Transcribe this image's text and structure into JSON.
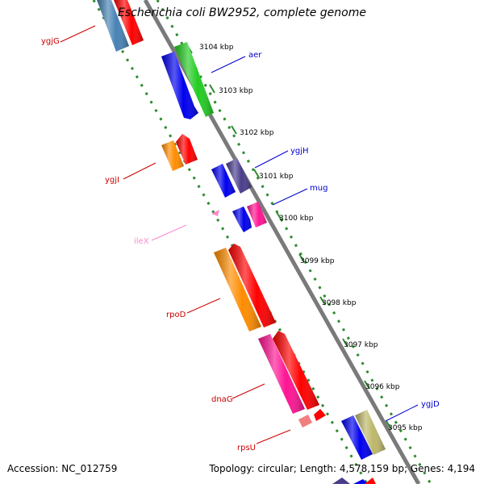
{
  "title": "Escherichia coli BW2952, complete genome",
  "footer": {
    "accession": "Accession: NC_012759",
    "summary": "Topology: circular; Length: 4,578,159 bp; Genes: 4,194"
  },
  "ticks": [
    "3104 kbp",
    "3103 kbp",
    "3102 kbp",
    "3101 kbp",
    "3100 kbp",
    "3099 kbp",
    "3098 kbp",
    "3097 kbp",
    "3096 kbp",
    "3095 kbp"
  ],
  "genes": [
    {
      "name": "ygjG",
      "strand": "reverse",
      "color": "#ff0000"
    },
    {
      "name": "aer",
      "strand": "forward",
      "color": "#0000ee"
    },
    {
      "name": "ygjH",
      "strand": "forward",
      "color": "#0000ee"
    },
    {
      "name": "ygjI",
      "strand": "reverse",
      "color": "#ff0000"
    },
    {
      "name": "mug",
      "strand": "forward",
      "color": "#0000ee"
    },
    {
      "name": "ileX",
      "strand": "reverse",
      "color": "#ff88cc"
    },
    {
      "name": "rpoD",
      "strand": "reverse",
      "color": "#ff0000"
    },
    {
      "name": "dnaG",
      "strand": "reverse",
      "color": "#ff0000"
    },
    {
      "name": "rpsU",
      "strand": "reverse",
      "color": "#ff0000"
    },
    {
      "name": "ygjD",
      "strand": "forward",
      "color": "#0000ee"
    }
  ]
}
